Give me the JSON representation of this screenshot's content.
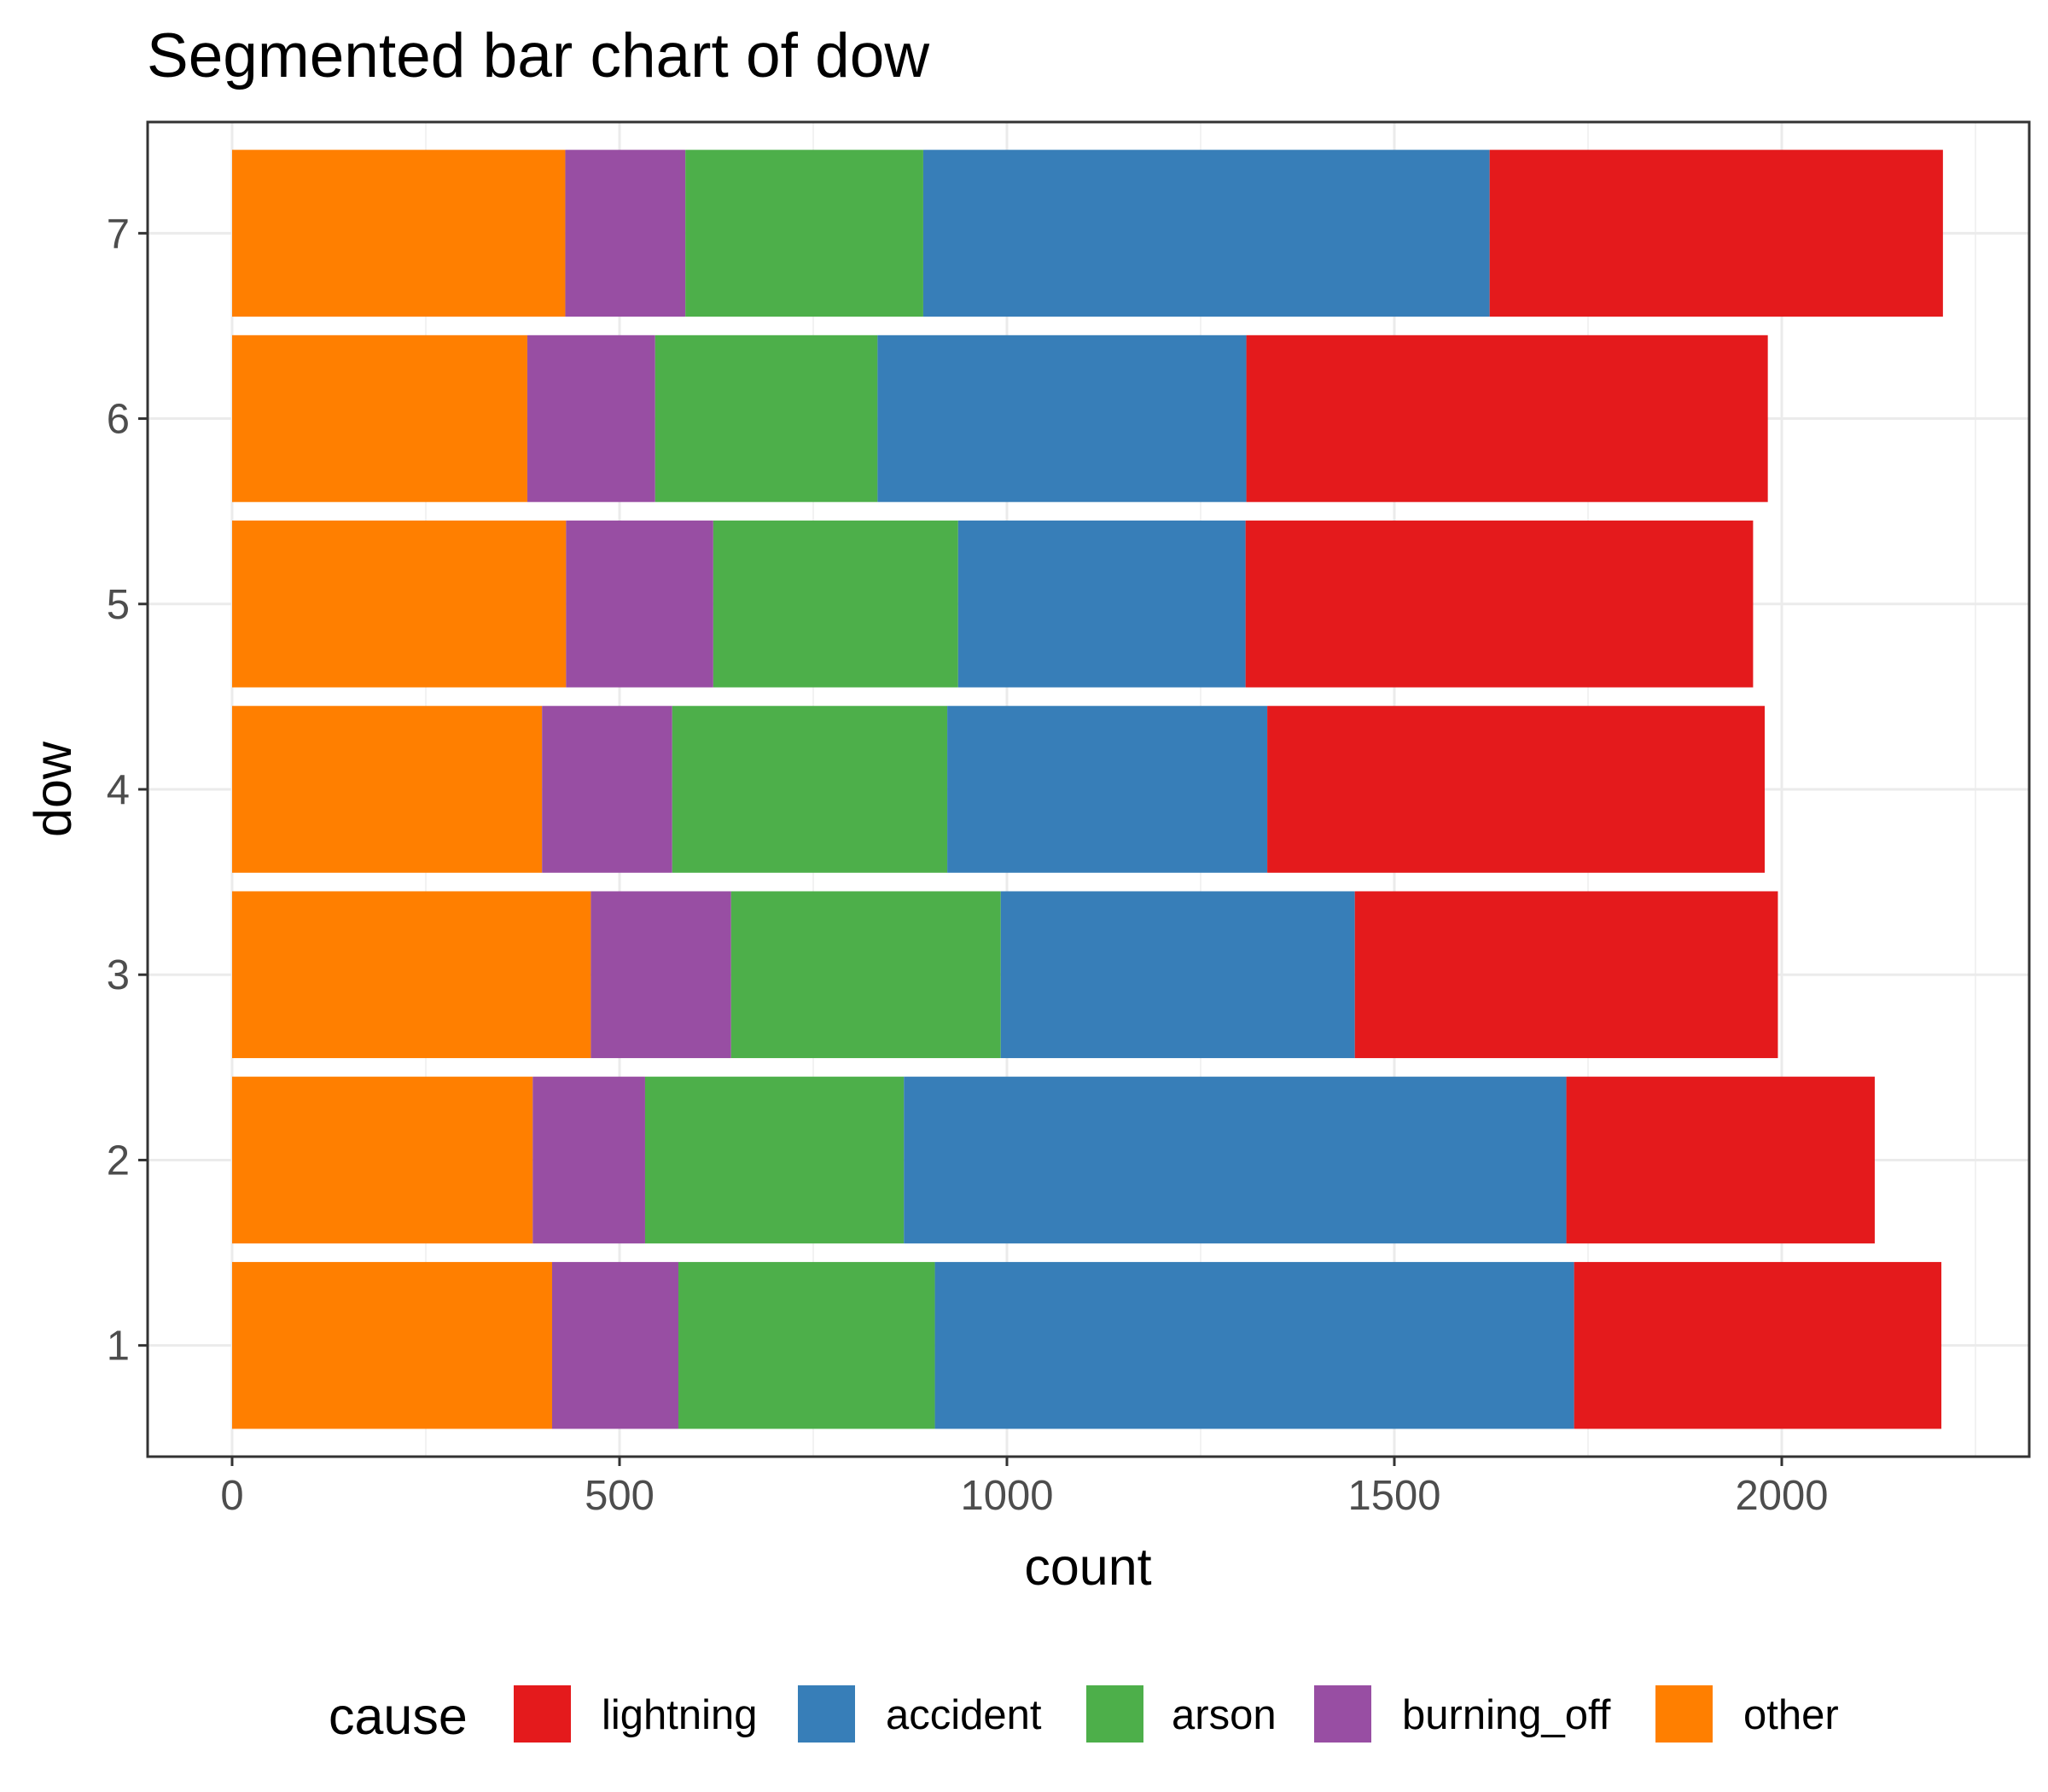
{
  "chart_data": {
    "type": "bar",
    "orientation": "horizontal",
    "stacked": true,
    "title": "Segmented bar chart of dow",
    "xlabel": "count",
    "ylabel": "dow",
    "categories": [
      "1",
      "2",
      "3",
      "4",
      "5",
      "6",
      "7"
    ],
    "xlim": [
      0,
      2250
    ],
    "xticks": [
      0,
      500,
      1000,
      1500,
      2000
    ],
    "grid": true,
    "legend": {
      "title": "cause",
      "position": "bottom",
      "order": [
        "lightning",
        "accident",
        "arson",
        "burning_off",
        "other"
      ]
    },
    "stack_order": [
      "other",
      "burning_off",
      "arson",
      "accident",
      "lightning"
    ],
    "series": [
      {
        "name": "other",
        "color": "#FF7F00",
        "values": [
          413,
          388,
          463,
          400,
          431,
          381,
          430
        ]
      },
      {
        "name": "burning_off",
        "color": "#984EA3",
        "values": [
          163,
          145,
          181,
          168,
          190,
          165,
          155
        ]
      },
      {
        "name": "arson",
        "color": "#4DAF4A",
        "values": [
          331,
          334,
          348,
          355,
          316,
          287,
          307
        ]
      },
      {
        "name": "accident",
        "color": "#377EB8",
        "values": [
          825,
          855,
          457,
          413,
          371,
          476,
          731
        ]
      },
      {
        "name": "lightning",
        "color": "#E41A1C",
        "values": [
          474,
          398,
          546,
          642,
          655,
          673,
          585
        ]
      }
    ]
  }
}
